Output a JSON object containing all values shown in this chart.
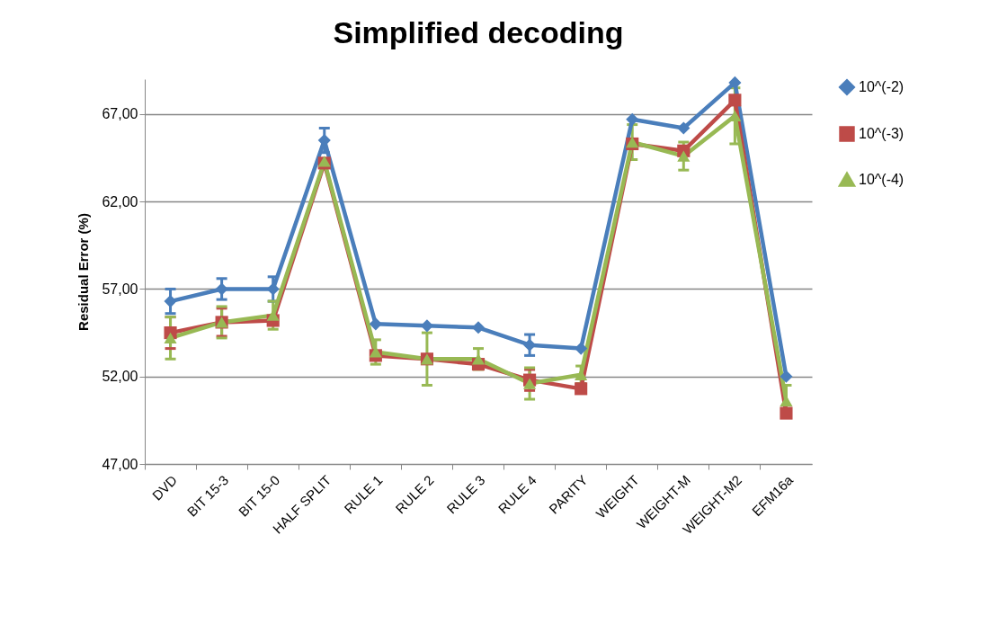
{
  "chart_data": {
    "type": "line",
    "title": "Simplified decoding",
    "ylabel": "Residual Error (%)",
    "categories": [
      "DVD",
      "BIT 15-3",
      "BIT 15-0",
      "HALF SPLIT",
      "RULE 1",
      "RULE 2",
      "RULE 3",
      "RULE 4",
      "PARITY",
      "WEIGHT",
      "WEIGHT-M",
      "WEIGHT-M2",
      "EFM16a"
    ],
    "series": [
      {
        "name": "10^(-2)",
        "color": "#4a7ebb",
        "marker": "diamond",
        "values": [
          56.3,
          57.0,
          57.0,
          65.5,
          55.0,
          54.9,
          54.8,
          53.8,
          53.6,
          66.7,
          66.2,
          68.8,
          52.0
        ],
        "errors": [
          0.7,
          0.6,
          0.7,
          0.7,
          null,
          null,
          null,
          0.6,
          null,
          null,
          null,
          null,
          null
        ]
      },
      {
        "name": "10^(-3)",
        "color": "#be4b48",
        "marker": "square",
        "values": [
          54.5,
          55.1,
          55.2,
          64.2,
          53.2,
          53.0,
          52.7,
          51.8,
          51.3,
          65.3,
          64.9,
          67.8,
          49.9
        ],
        "errors": [
          0.9,
          0.8,
          null,
          null,
          null,
          null,
          null,
          0.6,
          null,
          null,
          null,
          null,
          null
        ]
      },
      {
        "name": "10^(-4)",
        "color": "#98b954",
        "marker": "triangle",
        "values": [
          54.2,
          55.1,
          55.5,
          64.3,
          53.4,
          53.0,
          53.0,
          51.6,
          52.1,
          65.4,
          64.6,
          66.9,
          50.6
        ],
        "errors": [
          1.2,
          0.9,
          0.8,
          null,
          0.7,
          1.5,
          0.6,
          0.9,
          0.5,
          1.0,
          0.8,
          1.6,
          0.9
        ]
      }
    ],
    "ylim": [
      47,
      69
    ],
    "yticks": [
      {
        "value": 47,
        "label": "47,00"
      },
      {
        "value": 52,
        "label": "52,00"
      },
      {
        "value": 57,
        "label": "57,00"
      },
      {
        "value": 62,
        "label": "62,00"
      },
      {
        "value": 67,
        "label": "67,00"
      }
    ],
    "grid": "y",
    "legend": "right",
    "line_style": "solid"
  }
}
